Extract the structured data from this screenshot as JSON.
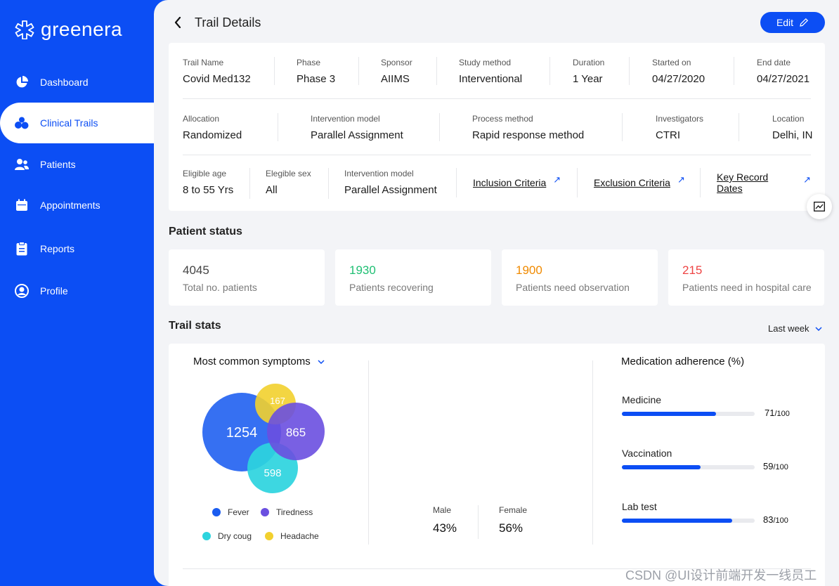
{
  "brand": {
    "name": "greenera",
    "accent": "#0c4ef4"
  },
  "nav": [
    {
      "label": "Dashboard",
      "icon": "pie-chart-icon"
    },
    {
      "label": "Clinical Trails",
      "icon": "molecules-icon",
      "active": true
    },
    {
      "label": "Patients",
      "icon": "users-icon"
    },
    {
      "label": "Appointments",
      "icon": "calendar-icon"
    },
    {
      "label": "Reports",
      "icon": "clipboard-icon"
    },
    {
      "label": "Profile",
      "icon": "user-circle-icon"
    }
  ],
  "header": {
    "title": "Trail Details",
    "edit_label": "Edit"
  },
  "details": {
    "row1": [
      {
        "label": "Trail Name",
        "value": "Covid Med132"
      },
      {
        "label": "Phase",
        "value": "Phase 3"
      },
      {
        "label": "Sponsor",
        "value": "AIIMS"
      },
      {
        "label": "Study method",
        "value": "Interventional"
      },
      {
        "label": "Duration",
        "value": "1 Year"
      },
      {
        "label": "Started on",
        "value": "04/27/2020"
      },
      {
        "label": "End date",
        "value": "04/27/2021"
      }
    ],
    "row2": [
      {
        "label": "Allocation",
        "value": "Randomized"
      },
      {
        "label": "Intervention model",
        "value": "Parallel Assignment"
      },
      {
        "label": "Process method",
        "value": "Rapid response method"
      },
      {
        "label": "Investigators",
        "value": "CTRI"
      },
      {
        "label": "Location",
        "value": "Delhi, IN"
      }
    ],
    "row3": [
      {
        "label": "Eligible age",
        "value": "8 to 55 Yrs"
      },
      {
        "label": "Elegible sex",
        "value": "All"
      },
      {
        "label": "Intervention model",
        "value": "Parallel Assignment"
      }
    ],
    "links": [
      "Inclusion Criteria",
      "Exclusion Criteria",
      "Key Record Dates"
    ]
  },
  "patient_status": {
    "title": "Patient status",
    "cards": [
      {
        "value": "4045",
        "label": "Total no. patients",
        "color": "#444444"
      },
      {
        "value": "1930",
        "label": "Patients recovering",
        "color": "#1fbf73"
      },
      {
        "value": "1900",
        "label": "Patients need observation",
        "color": "#f08a00"
      },
      {
        "value": "215",
        "label": "Patients need in hospital care",
        "color": "#ee4444"
      }
    ]
  },
  "trail_stats": {
    "title": "Trail stats",
    "period": "Last week",
    "symptoms": {
      "title": "Most common symptoms",
      "venn": [
        {
          "name": "Fever",
          "value": "1254",
          "color": "#1a5cf0"
        },
        {
          "name": "Tiredness",
          "value": "865",
          "color": "#6a4fe0"
        },
        {
          "name": "Dry coug",
          "value": "598",
          "color": "#2dd4de"
        },
        {
          "name": "Headache",
          "value": "167",
          "color": "#f2d02e"
        }
      ]
    },
    "gender": [
      {
        "label": "Male",
        "value": "43%"
      },
      {
        "label": "Female",
        "value": "56%"
      }
    ],
    "adherence": {
      "title": "Medication adherence (%)",
      "items": [
        {
          "label": "Medicine",
          "value": 71,
          "value_text": "71",
          "max_text": "/100"
        },
        {
          "label": "Vaccination",
          "value": 59,
          "value_text": "59",
          "max_text": "/100"
        },
        {
          "label": "Lab test",
          "value": 83,
          "value_text": "83",
          "max_text": "/100"
        }
      ]
    }
  },
  "watermark": "CSDN @UI设计前端开发一线员工"
}
